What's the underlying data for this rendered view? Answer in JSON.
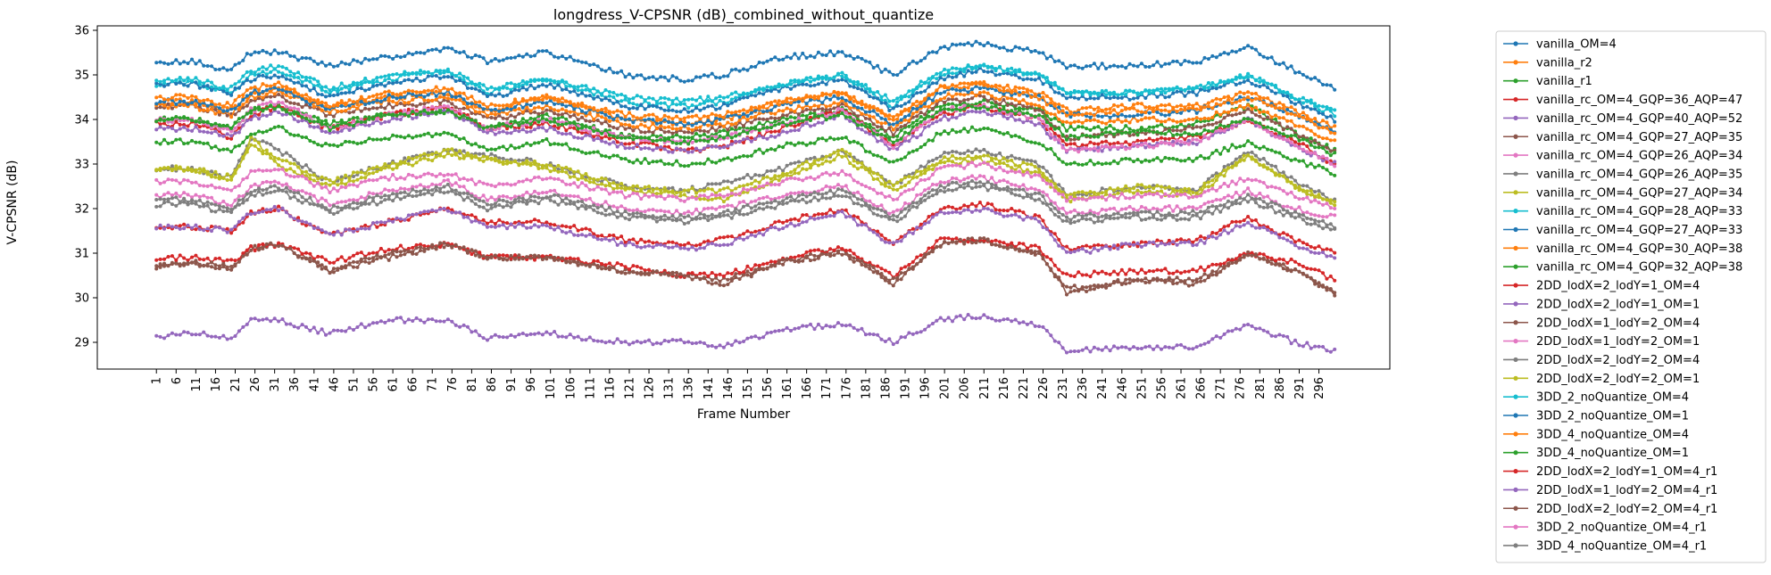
{
  "chart_data": {
    "type": "line",
    "title": "longdress_V-CPSNR (dB)_combined_without_quantize",
    "xlabel": "Frame Number",
    "ylabel": "V-CPSNR (dB)",
    "x_range": [
      1,
      300
    ],
    "x_ticks": [
      1,
      6,
      11,
      16,
      21,
      26,
      31,
      36,
      41,
      46,
      51,
      56,
      61,
      66,
      71,
      76,
      81,
      86,
      91,
      96,
      101,
      106,
      111,
      116,
      121,
      126,
      131,
      136,
      141,
      146,
      151,
      156,
      161,
      166,
      171,
      176,
      181,
      186,
      191,
      196,
      201,
      206,
      211,
      216,
      221,
      226,
      231,
      236,
      241,
      246,
      251,
      256,
      261,
      266,
      271,
      276,
      281,
      286,
      291,
      296
    ],
    "ylim": [
      28.4,
      36.1
    ],
    "y_ticks": [
      29,
      30,
      31,
      32,
      33,
      34,
      35,
      36
    ],
    "grid": false,
    "legend_position": "outside-right",
    "key_frames": [
      1,
      10,
      20,
      25,
      32,
      45,
      60,
      75,
      85,
      100,
      120,
      135,
      145,
      160,
      175,
      188,
      200,
      210,
      225,
      232,
      250,
      265,
      278,
      290,
      300
    ],
    "series": [
      {
        "name": "vanilla_OM=4",
        "color": "#1f77b4",
        "values": [
          35.3,
          35.3,
          35.1,
          35.5,
          35.5,
          35.2,
          35.4,
          35.6,
          35.3,
          35.5,
          35.0,
          34.9,
          35.0,
          35.4,
          35.5,
          35.0,
          35.6,
          35.7,
          35.5,
          35.2,
          35.2,
          35.3,
          35.6,
          35.1,
          34.7
        ]
      },
      {
        "name": "vanilla_r2",
        "color": "#ff7f0e",
        "values": [
          34.4,
          34.4,
          34.2,
          34.6,
          34.7,
          34.3,
          34.5,
          34.6,
          34.2,
          34.5,
          34.0,
          33.9,
          34.0,
          34.4,
          34.6,
          34.0,
          34.7,
          34.8,
          34.6,
          34.2,
          34.3,
          34.3,
          34.6,
          34.2,
          33.8
        ]
      },
      {
        "name": "vanilla_r1",
        "color": "#2ca02c",
        "values": [
          34.0,
          34.0,
          33.8,
          34.2,
          34.3,
          33.9,
          34.1,
          34.2,
          33.8,
          34.1,
          33.6,
          33.6,
          33.7,
          34.0,
          34.2,
          33.6,
          34.3,
          34.4,
          34.2,
          33.8,
          33.8,
          33.9,
          34.3,
          33.7,
          33.3
        ]
      },
      {
        "name": "vanilla_rc_OM=4_GQP=36_AQP=47",
        "color": "#d62728",
        "values": [
          33.9,
          33.9,
          33.6,
          34.1,
          34.3,
          33.8,
          34.1,
          34.3,
          33.8,
          33.9,
          33.5,
          33.3,
          33.4,
          33.8,
          34.2,
          33.4,
          34.1,
          34.3,
          34.0,
          33.4,
          33.5,
          33.6,
          34.0,
          33.5,
          33.0
        ]
      },
      {
        "name": "vanilla_rc_OM=4_GQP=40_AQP=52",
        "color": "#9467bd",
        "values": [
          33.8,
          33.8,
          33.6,
          34.0,
          34.2,
          33.7,
          34.0,
          34.2,
          33.7,
          33.8,
          33.4,
          33.3,
          33.4,
          33.7,
          34.1,
          33.3,
          34.0,
          34.2,
          33.9,
          33.3,
          33.4,
          33.5,
          34.0,
          33.4,
          33.0
        ]
      },
      {
        "name": "vanilla_rc_OM=4_GQP=27_AQP=35",
        "color": "#8c564b",
        "values": [
          34.3,
          34.3,
          34.1,
          34.4,
          34.5,
          34.1,
          34.3,
          34.4,
          34.0,
          34.2,
          33.8,
          33.7,
          33.8,
          34.1,
          34.3,
          33.7,
          34.4,
          34.5,
          34.2,
          33.6,
          33.7,
          33.8,
          34.2,
          33.7,
          33.3
        ]
      },
      {
        "name": "vanilla_rc_OM=4_GQP=26_AQP=34",
        "color": "#e377c2",
        "values": [
          34.0,
          34.0,
          33.7,
          34.2,
          34.4,
          33.8,
          34.1,
          34.3,
          33.8,
          34.0,
          33.6,
          33.5,
          33.6,
          33.9,
          34.2,
          33.4,
          34.2,
          34.3,
          34.0,
          33.3,
          33.4,
          33.5,
          34.0,
          33.4,
          33.0
        ]
      },
      {
        "name": "vanilla_rc_OM=4_GQP=26_AQP=35",
        "color": "#7f7f7f",
        "values": [
          32.9,
          32.9,
          32.7,
          33.6,
          33.3,
          32.6,
          33.0,
          33.3,
          33.2,
          33.0,
          32.5,
          32.4,
          32.6,
          32.9,
          33.3,
          32.5,
          33.2,
          33.3,
          33.0,
          32.3,
          32.5,
          32.4,
          33.3,
          32.6,
          32.2
        ]
      },
      {
        "name": "vanilla_rc_OM=4_GQP=27_AQP=34",
        "color": "#bcbd22",
        "values": [
          32.9,
          32.9,
          32.6,
          33.6,
          33.0,
          32.5,
          32.9,
          33.2,
          33.1,
          32.9,
          32.4,
          32.3,
          32.2,
          32.7,
          33.2,
          32.4,
          33.0,
          33.1,
          32.8,
          32.2,
          32.4,
          32.3,
          33.2,
          32.5,
          32.1
        ]
      },
      {
        "name": "vanilla_rc_OM=4_GQP=28_AQP=33",
        "color": "#17becf",
        "values": [
          34.8,
          34.8,
          34.6,
          35.0,
          35.1,
          34.6,
          34.9,
          35.1,
          34.6,
          34.9,
          34.4,
          34.3,
          34.4,
          34.8,
          35.0,
          34.3,
          35.0,
          35.2,
          35.0,
          34.6,
          34.6,
          34.7,
          35.0,
          34.5,
          34.1
        ]
      },
      {
        "name": "vanilla_rc_OM=4_GQP=27_AQP=33",
        "color": "#1f77b4",
        "values": [
          34.8,
          34.8,
          34.6,
          34.9,
          35.0,
          34.5,
          34.8,
          35.0,
          34.5,
          34.8,
          34.3,
          34.2,
          34.3,
          34.7,
          34.9,
          34.2,
          34.9,
          35.1,
          34.9,
          34.5,
          34.5,
          34.6,
          34.9,
          34.4,
          34.0
        ]
      },
      {
        "name": "vanilla_rc_OM=4_GQP=30_AQP=38",
        "color": "#ff7f0e",
        "values": [
          34.3,
          34.3,
          34.1,
          34.5,
          34.6,
          34.2,
          34.4,
          34.5,
          34.1,
          34.3,
          33.9,
          33.8,
          33.9,
          34.2,
          34.4,
          33.8,
          34.5,
          34.6,
          34.3,
          33.9,
          34.0,
          34.0,
          34.3,
          33.9,
          33.5
        ]
      },
      {
        "name": "vanilla_rc_OM=4_GQP=32_AQP=38",
        "color": "#2ca02c",
        "values": [
          33.5,
          33.5,
          33.3,
          33.7,
          33.8,
          33.4,
          33.6,
          33.7,
          33.3,
          33.5,
          33.1,
          33.0,
          33.1,
          33.4,
          33.6,
          33.0,
          33.7,
          33.8,
          33.5,
          33.0,
          33.1,
          33.1,
          33.5,
          33.1,
          32.8
        ]
      },
      {
        "name": "2DD_lodX=2_lodY=1_OM=4",
        "color": "#d62728",
        "values": [
          31.6,
          31.6,
          31.5,
          31.9,
          32.0,
          31.4,
          31.7,
          32.0,
          31.7,
          31.7,
          31.3,
          31.2,
          31.3,
          31.7,
          32.0,
          31.2,
          32.0,
          32.1,
          31.8,
          31.1,
          31.2,
          31.3,
          31.8,
          31.3,
          31.0
        ]
      },
      {
        "name": "2DD_lodX=2_lodY=1_OM=1",
        "color": "#9467bd",
        "values": [
          31.6,
          31.6,
          31.5,
          31.9,
          32.0,
          31.4,
          31.7,
          32.0,
          31.6,
          31.6,
          31.2,
          31.1,
          31.2,
          31.6,
          31.9,
          31.2,
          31.9,
          32.0,
          31.7,
          31.0,
          31.2,
          31.2,
          31.7,
          31.2,
          30.9
        ]
      },
      {
        "name": "2DD_lodX=1_lodY=2_OM=4",
        "color": "#8c564b",
        "values": [
          30.7,
          30.8,
          30.6,
          31.1,
          31.2,
          30.6,
          30.9,
          31.2,
          30.9,
          30.9,
          30.6,
          30.5,
          30.4,
          30.8,
          31.1,
          30.3,
          31.2,
          31.3,
          31.0,
          30.2,
          30.4,
          30.4,
          31.0,
          30.6,
          30.1
        ]
      },
      {
        "name": "2DD_lodX=1_lodY=2_OM=1",
        "color": "#e377c2",
        "values": [
          32.3,
          32.3,
          32.1,
          32.5,
          32.6,
          32.1,
          32.4,
          32.6,
          32.2,
          32.4,
          32.0,
          31.9,
          32.0,
          32.3,
          32.5,
          31.9,
          32.6,
          32.7,
          32.4,
          31.9,
          32.0,
          32.0,
          32.4,
          32.0,
          31.8
        ]
      },
      {
        "name": "2DD_lodX=2_lodY=2_OM=4",
        "color": "#7f7f7f",
        "values": [
          32.1,
          32.1,
          31.9,
          32.3,
          32.4,
          31.9,
          32.2,
          32.4,
          32.0,
          32.2,
          31.8,
          31.7,
          31.8,
          32.1,
          32.3,
          31.7,
          32.4,
          32.5,
          32.2,
          31.7,
          31.8,
          31.8,
          32.2,
          31.8,
          31.5
        ]
      },
      {
        "name": "2DD_lodX=2_lodY=2_OM=1",
        "color": "#bcbd22",
        "values": [
          32.9,
          32.9,
          32.7,
          33.4,
          33.1,
          32.6,
          33.0,
          33.3,
          33.1,
          33.0,
          32.5,
          32.4,
          32.4,
          32.8,
          33.3,
          32.5,
          33.1,
          33.2,
          32.9,
          32.3,
          32.5,
          32.4,
          33.2,
          32.5,
          32.1
        ]
      },
      {
        "name": "3DD_2_noQuantize_OM=4",
        "color": "#17becf",
        "values": [
          34.9,
          34.9,
          34.7,
          35.1,
          35.2,
          34.7,
          35.0,
          35.1,
          34.7,
          34.9,
          34.5,
          34.4,
          34.5,
          34.8,
          35.0,
          34.4,
          35.1,
          35.2,
          35.0,
          34.6,
          34.6,
          34.7,
          35.0,
          34.5,
          34.2
        ]
      },
      {
        "name": "3DD_2_noQuantize_OM=1",
        "color": "#1f77b4",
        "values": [
          34.4,
          34.4,
          34.2,
          34.6,
          34.7,
          34.2,
          34.5,
          34.6,
          34.2,
          34.4,
          34.0,
          33.9,
          34.0,
          34.3,
          34.5,
          33.9,
          34.6,
          34.7,
          34.5,
          34.1,
          34.1,
          34.2,
          34.5,
          34.1,
          33.7
        ]
      },
      {
        "name": "3DD_4_noQuantize_OM=4",
        "color": "#ff7f0e",
        "values": [
          34.5,
          34.5,
          34.3,
          34.7,
          34.8,
          34.3,
          34.6,
          34.7,
          34.3,
          34.5,
          34.1,
          34.0,
          34.1,
          34.4,
          34.6,
          34.0,
          34.7,
          34.8,
          34.5,
          34.1,
          34.2,
          34.2,
          34.5,
          34.1,
          33.7
        ]
      },
      {
        "name": "3DD_4_noQuantize_OM=1",
        "color": "#2ca02c",
        "values": [
          34.0,
          34.0,
          33.8,
          34.2,
          34.3,
          33.8,
          34.1,
          34.2,
          33.8,
          34.0,
          33.6,
          33.5,
          33.6,
          33.9,
          34.1,
          33.5,
          34.2,
          34.3,
          34.1,
          33.6,
          33.7,
          33.7,
          34.0,
          33.6,
          33.2
        ]
      },
      {
        "name": "2DD_lodX=2_lodY=1_OM=4_r1",
        "color": "#d62728",
        "values": [
          30.9,
          30.9,
          30.8,
          31.1,
          31.2,
          30.8,
          31.1,
          31.2,
          30.9,
          30.9,
          30.7,
          30.5,
          30.5,
          30.9,
          31.1,
          30.5,
          31.3,
          31.3,
          31.1,
          30.5,
          30.6,
          30.6,
          31.0,
          30.8,
          30.4
        ]
      },
      {
        "name": "2DD_lodX=1_lodY=2_OM=4_r1",
        "color": "#9467bd",
        "values": [
          29.1,
          29.2,
          29.1,
          29.5,
          29.5,
          29.2,
          29.5,
          29.5,
          29.1,
          29.2,
          29.0,
          29.0,
          28.9,
          29.3,
          29.4,
          29.0,
          29.5,
          29.6,
          29.4,
          28.8,
          28.9,
          28.9,
          29.4,
          29.0,
          28.8
        ]
      },
      {
        "name": "2DD_lodX=2_lodY=2_OM=4_r1",
        "color": "#8c564b",
        "values": [
          30.7,
          30.8,
          30.7,
          31.1,
          31.2,
          30.6,
          31.0,
          31.2,
          30.9,
          30.9,
          30.6,
          30.5,
          30.3,
          30.8,
          31.0,
          30.4,
          31.2,
          31.3,
          31.0,
          30.1,
          30.4,
          30.3,
          31.0,
          30.6,
          30.1
        ]
      },
      {
        "name": "3DD_2_noQuantize_OM=4_r1",
        "color": "#e377c2",
        "values": [
          32.6,
          32.6,
          32.4,
          32.8,
          32.9,
          32.4,
          32.7,
          32.8,
          32.5,
          32.7,
          32.3,
          32.2,
          32.3,
          32.6,
          32.8,
          32.2,
          32.9,
          33.0,
          32.7,
          32.2,
          32.3,
          32.3,
          32.7,
          32.3,
          32.0
        ]
      },
      {
        "name": "3DD_4_noQuantize_OM=4_r1",
        "color": "#7f7f7f",
        "values": [
          32.2,
          32.2,
          32.0,
          32.4,
          32.5,
          32.0,
          32.3,
          32.5,
          32.1,
          32.3,
          31.9,
          31.8,
          31.9,
          32.2,
          32.4,
          31.8,
          32.5,
          32.6,
          32.3,
          31.8,
          31.9,
          31.9,
          32.3,
          31.9,
          31.6
        ]
      }
    ]
  }
}
